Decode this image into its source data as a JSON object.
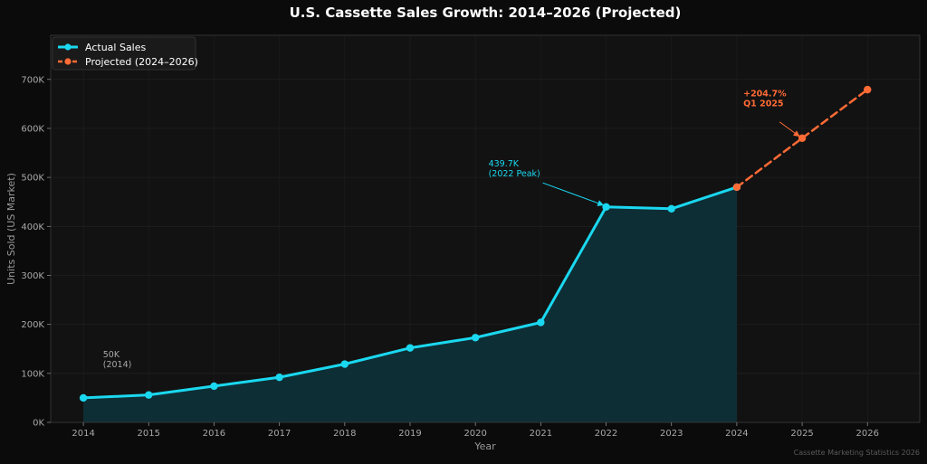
{
  "chart_data": {
    "type": "line",
    "title": "U.S. Cassette Sales Growth: 2014–2026 (Projected)",
    "xlabel": "Year",
    "ylabel": "Units Sold (US Market)",
    "xlim": [
      2013.5,
      2026.8
    ],
    "ylim": [
      0,
      790000
    ],
    "x_ticks": [
      2014,
      2015,
      2016,
      2017,
      2018,
      2019,
      2020,
      2021,
      2022,
      2023,
      2024,
      2025,
      2026
    ],
    "y_ticks": [
      0,
      100000,
      200000,
      300000,
      400000,
      500000,
      600000,
      700000
    ],
    "y_tick_labels": [
      "0K",
      "100K",
      "200K",
      "300K",
      "400K",
      "500K",
      "600K",
      "700K"
    ],
    "grid": true,
    "legend_position": "top-left",
    "series": [
      {
        "name": "Actual Sales",
        "style": "solid-filled",
        "color": "#1ad8f0",
        "x": [
          2014,
          2015,
          2016,
          2017,
          2018,
          2019,
          2020,
          2021,
          2022,
          2023,
          2024
        ],
        "values": [
          50000,
          56000,
          74000,
          92000,
          119000,
          152000,
          173000,
          204000,
          439700,
          436000,
          480000
        ]
      },
      {
        "name": "Projected (2024–2026)",
        "style": "dashed",
        "color": "#ff6b35",
        "x": [
          2024,
          2025,
          2026
        ],
        "values": [
          480000,
          580000,
          679000
        ]
      }
    ],
    "annotations": [
      {
        "lines": [
          "50K",
          "(2014)"
        ],
        "color": "#a8a8a8",
        "bold": false,
        "text_x": 2014.3,
        "text_y": 133000,
        "arrow": false
      },
      {
        "lines": [
          "439.7K",
          "(2022 Peak)"
        ],
        "color": "#1ad8f0",
        "bold": false,
        "text_x": 2020.2,
        "text_y": 522000,
        "arrow": true,
        "target_x": 2022,
        "target_y": 439700
      },
      {
        "lines": [
          "+204.7%",
          "Q1 2025"
        ],
        "color": "#ff6b35",
        "bold": true,
        "text_x": 2024.1,
        "text_y": 665000,
        "arrow": true,
        "target_x": 2025,
        "target_y": 580000
      }
    ],
    "footer": "Cassette Marketing Statistics 2026"
  },
  "colors": {
    "figure_bg": "#0b0b0b",
    "plot_bg": "#121212",
    "grid": "#1f1f1f",
    "spine": "#3a3a3a",
    "area_fill": "#0f3038"
  }
}
